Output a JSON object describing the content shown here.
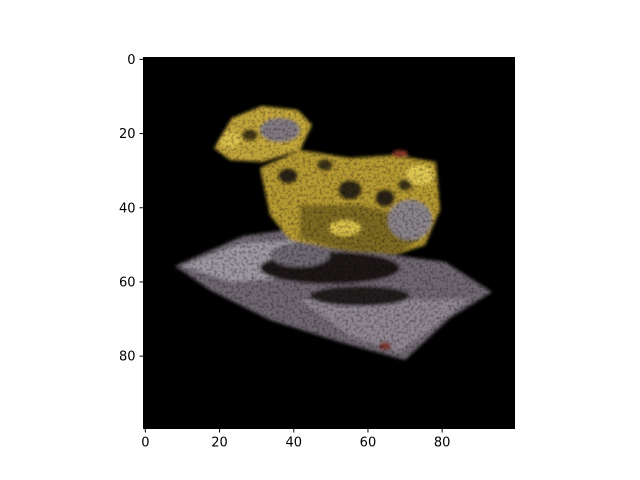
{
  "chart_data": {
    "type": "heatmap",
    "title": "",
    "xlabel": "",
    "ylabel": "",
    "xlim": [
      -0.5,
      99.5
    ],
    "ylim": [
      99.5,
      -0.5
    ],
    "y_inverted": true,
    "grid": false,
    "x_ticks": [
      0,
      20,
      40,
      60,
      80
    ],
    "y_ticks": [
      0,
      20,
      40,
      60,
      80
    ],
    "x_tick_labels": [
      "0",
      "20",
      "40",
      "60",
      "80"
    ],
    "y_tick_labels": [
      "0",
      "20",
      "40",
      "60",
      "80"
    ],
    "image": {
      "width": 100,
      "height": 100,
      "background": "#000000",
      "content": "noisy low-resolution render of a yellow toy-like object on a grey-purple slab",
      "palette": {
        "yellow": "#c8ad3a",
        "dark_yellow": "#7a6a1e",
        "grey": "#8a8388",
        "purple_grey": "#5a4f5c",
        "shadow": "#1e1a16",
        "red_accent": "#8a3a2a"
      }
    }
  }
}
